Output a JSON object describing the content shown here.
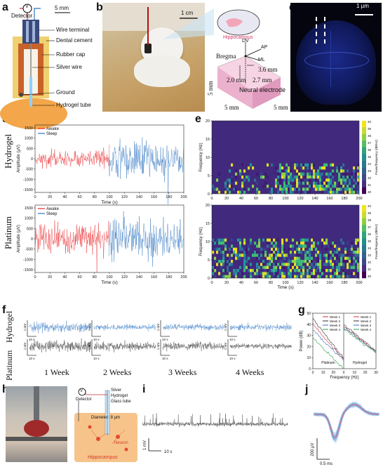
{
  "panels": [
    "a",
    "b",
    "c",
    "d",
    "e",
    "f",
    "g",
    "h",
    "i",
    "j"
  ],
  "a": {
    "detector": "Detector",
    "v": "V",
    "scale": "5 mm",
    "labels": [
      "Wire terminal",
      "Dental cement",
      "Rubber cap",
      "Silver wire",
      "Ground",
      "Hydrogel tube"
    ]
  },
  "b": {
    "scale": "1 cm",
    "hippocampus": "Hippocampus",
    "bregma": "Bregma",
    "dv": "DV",
    "ap": "AP",
    "ml": "ML",
    "dims": [
      "3.6 mm",
      "2.0 mm",
      "2.7 mm"
    ],
    "neural": "Neural electrode",
    "box": [
      "5 mm",
      "5 mm",
      "5 mm"
    ]
  },
  "c": {
    "scale": "1 μm"
  },
  "d": {
    "rows": [
      "Hydrogel",
      "Platinum"
    ],
    "ylabel": "Amplitude (μV)",
    "xlabel": "Time (s)",
    "legend": [
      "Awake",
      "Sleep"
    ],
    "yticks": [
      "1500",
      "1000",
      "500",
      "0",
      "-500",
      "-1000",
      "-1500"
    ],
    "xticks": [
      "0",
      "20",
      "40",
      "60",
      "80",
      "100",
      "120",
      "140",
      "160",
      "180",
      "200"
    ]
  },
  "e": {
    "ylabel": "Frequency (Hz)",
    "xlabel": "Time (s)",
    "yticks": [
      "20",
      "15",
      "10",
      "5",
      "0"
    ],
    "xticks": [
      "0",
      "20",
      "40",
      "60",
      "80",
      "100",
      "120",
      "140",
      "160",
      "180",
      "200"
    ],
    "cbar": [
      "40",
      "39",
      "38",
      "37",
      "36",
      "35",
      "34",
      "33",
      "32",
      "31",
      "30"
    ],
    "cbar_label": "Power/frequency (dB/Hz)"
  },
  "f": {
    "rows": [
      "Hydrogel",
      "Platinum"
    ],
    "weeks": [
      "1 Week",
      "2 Weeks",
      "3 Weeks",
      "4 Weeks"
    ],
    "scale_v": "1 mV",
    "scale_t": "10 s"
  },
  "g": {
    "ylabel": "Power (dB)",
    "xlabel": "Frequency (Hz)",
    "yticks": [
      "50",
      "40",
      "30",
      "20",
      "10",
      "0"
    ],
    "xticks": [
      "0",
      "10",
      "20",
      "30",
      "10",
      "20",
      "30"
    ],
    "legend": [
      "Week 1",
      "Week 2",
      "Week 3",
      "Week 4"
    ],
    "sub": [
      "Platinum",
      "Hydrogel"
    ]
  },
  "h": {
    "labels": [
      "Detector",
      "Silver",
      "Hydrogel",
      "Glass tube",
      "Diameter: 8 μm",
      "Neuron",
      "Hippocampus"
    ],
    "v": "V"
  },
  "i": {
    "scale_v": "1 mV",
    "scale_t": "10 s"
  },
  "j": {
    "scale_v": "200 μV",
    "scale_t": "0.5 ms"
  },
  "colors": {
    "awake": "#e8262a",
    "sleep": "#2f74c0",
    "hydro": "#3a7cc7",
    "plat": "#333333",
    "w1": "#d0343a",
    "w2": "#2c2c2c",
    "w3": "#3a6fc4",
    "w4": "#2ea44a"
  }
}
